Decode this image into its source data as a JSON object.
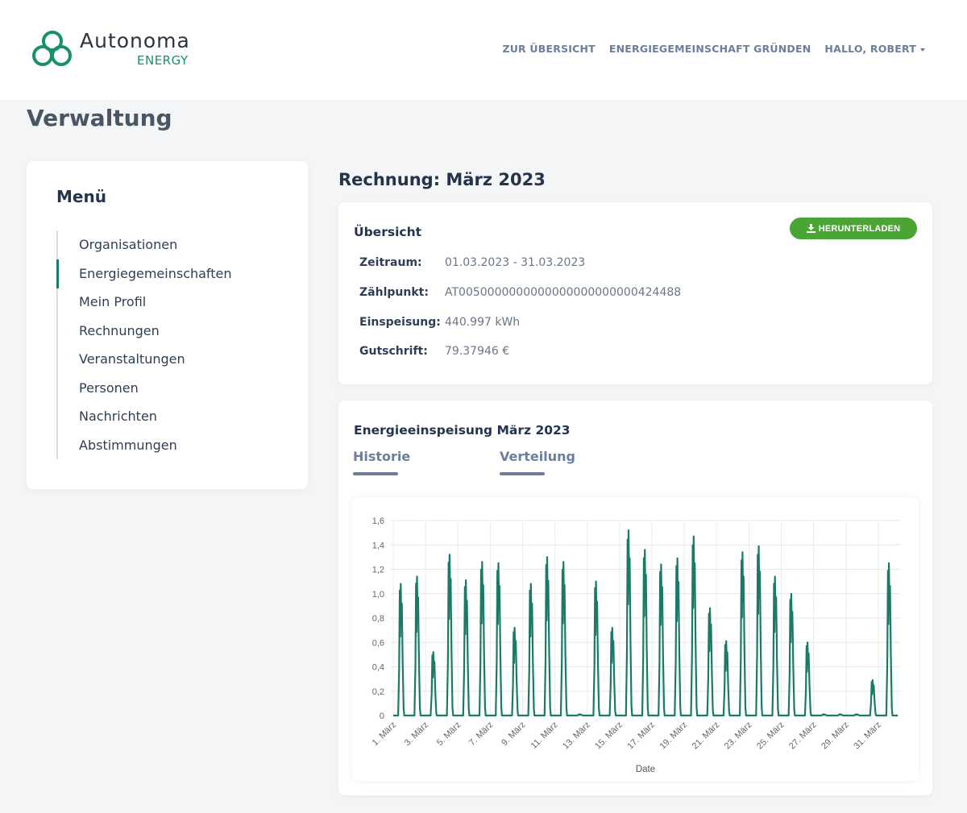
{
  "brand": {
    "name": "Autonoma",
    "sub": "ENERGY",
    "accent": "#1a9068"
  },
  "nav": {
    "items": [
      "ZUR ÜBERSICHT",
      "ENERGIEGEMEINSCHAFT GRÜNDEN",
      "HALLO, ROBERT"
    ]
  },
  "page_title": "Verwaltung",
  "menu": {
    "title": "Menü",
    "active_index": 1,
    "items": [
      "Organisationen",
      "Energiegemeinschaften",
      "Mein Profil",
      "Rechnungen",
      "Veranstaltungen",
      "Personen",
      "Nachrichten",
      "Abstimmungen"
    ]
  },
  "invoice": {
    "title": "Rechnung: März 2023",
    "overview_title": "Übersicht",
    "download_label": "HERUNTERLADEN",
    "fields": [
      {
        "label": "Zeitraum:",
        "value": "01.03.2023 - 31.03.2023"
      },
      {
        "label": "Zählpunkt:",
        "value": "AT0050000000000000000000000424488"
      },
      {
        "label": "Einspeisung:",
        "value": "440.997 kWh"
      },
      {
        "label": "Gutschrift:",
        "value": "79.37946 €"
      }
    ]
  },
  "chart_section": {
    "title": "Energieeinspeisung März 2023",
    "tabs": [
      "Historie",
      "Verteilung"
    ]
  },
  "chart_data": {
    "type": "line",
    "xlabel": "Date",
    "ylabel": "",
    "ylim": [
      0,
      1.6
    ],
    "yticks": [
      "0",
      "0,2",
      "0,4",
      "0,6",
      "0,8",
      "1,0",
      "1,2",
      "1,4",
      "1,6"
    ],
    "xticks": [
      "1. März",
      "3. März",
      "5. März",
      "7. März",
      "9. März",
      "11. März",
      "13. März",
      "15. März",
      "17. März",
      "19. März",
      "21. März",
      "23. März",
      "25. März",
      "27. März",
      "29. März",
      "31. März"
    ],
    "grid": true,
    "color": "#1a7a66",
    "series": [
      {
        "x": [
          "1. März",
          "2. März",
          "3. März",
          "4. März",
          "5. März",
          "6. März",
          "7. März",
          "8. März",
          "9. März",
          "10. März",
          "11. März",
          "12. März",
          "13. März",
          "14. März",
          "15. März",
          "16. März",
          "17. März",
          "18. März",
          "19. März",
          "20. März",
          "21. März",
          "22. März",
          "23. März",
          "24. März",
          "25. März",
          "26. März",
          "27. März",
          "28. März",
          "29. März",
          "30. März",
          "31. März"
        ],
        "daily_peak": [
          1.08,
          1.14,
          0.52,
          1.32,
          1.11,
          1.26,
          1.25,
          0.72,
          1.08,
          1.3,
          1.26,
          0.01,
          1.1,
          0.72,
          1.52,
          1.36,
          1.24,
          1.29,
          1.47,
          0.88,
          0.61,
          1.34,
          1.39,
          1.14,
          1.0,
          0.6,
          0.01,
          0.01,
          0.01,
          0.29,
          1.25
        ]
      }
    ]
  }
}
